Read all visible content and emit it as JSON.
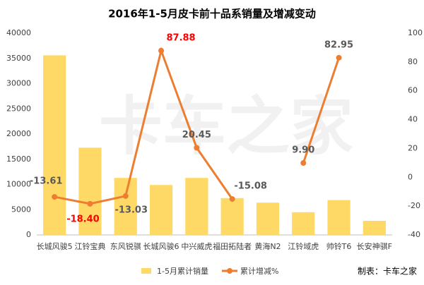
{
  "chart_data": {
    "type": "bar_line",
    "title": "2016年1-5月皮卡前十品系销量及增减变动",
    "categories": [
      "长城风骏5",
      "江铃宝典",
      "东风锐骐",
      "长城风骏6",
      "中兴威虎",
      "福田拓陆者",
      "黄海N2",
      "江铃域虎",
      "帅铃T6",
      "长安神骐F"
    ],
    "series": [
      {
        "name": "1-5月累计销量",
        "color": "#ffd966",
        "type": "bar",
        "values": [
          35600,
          17300,
          11300,
          9900,
          11300,
          7300,
          6400,
          4500,
          6900,
          2800
        ]
      },
      {
        "name": "累计增减%",
        "color": "#ed7d31",
        "type": "line",
        "axis": "y2",
        "values": [
          -13.61,
          -18.4,
          -13.03,
          87.88,
          20.45,
          -15.08,
          null,
          9.9,
          82.95,
          null
        ],
        "value_labels": [
          "-13.61",
          "-18.40",
          "-13.03",
          "87.88",
          "20.45",
          "-15.08",
          null,
          "9.90",
          "82.95",
          null
        ],
        "label_colors": [
          "#595959",
          "#ff0000",
          "#595959",
          "#ff0000",
          "#595959",
          "#595959",
          null,
          "#595959",
          "#595959",
          null
        ]
      }
    ],
    "ylim": [
      0,
      40000
    ],
    "yticks": [
      0,
      5000,
      10000,
      15000,
      20000,
      25000,
      30000,
      35000,
      40000
    ],
    "y2lim": [
      -40,
      100
    ],
    "y2ticks": [
      -40,
      -20,
      0,
      20,
      40,
      60,
      80,
      100
    ],
    "legend": "bottom",
    "source": "制表：卡车之家",
    "watermark": "卡车之家"
  }
}
